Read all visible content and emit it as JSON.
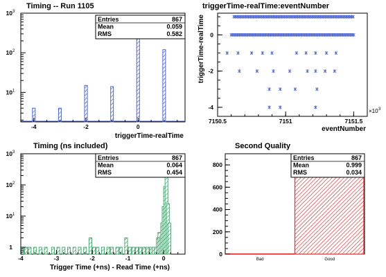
{
  "colors": {
    "blue": "#4d64d6",
    "green": "#3fa36a",
    "red": "#e03a3a",
    "axis": "#000000"
  },
  "chart_data": [
    {
      "id": "tl",
      "type": "bar",
      "title": "Timing -- Run 1105",
      "xlabel": "triggerTime-realTime",
      "ylabel": "",
      "yscale": "log",
      "xlim": [
        -4.5,
        1.8
      ],
      "ylim": [
        1.8,
        1000
      ],
      "x_ticks": [
        "-4",
        "-2",
        "0"
      ],
      "y_ticks": [
        "10",
        "10",
        "10"
      ],
      "y_tick_exps": [
        "1",
        "2",
        "3"
      ],
      "bars": [
        {
          "x": -4,
          "value": 4
        },
        {
          "x": -3,
          "value": 4
        },
        {
          "x": -2,
          "value": 15
        },
        {
          "x": -1,
          "value": 14
        },
        {
          "x": 0,
          "value": 700
        },
        {
          "x": 1,
          "value": 120
        }
      ],
      "stats": {
        "labels": [
          "Entries",
          "Mean",
          "RMS"
        ],
        "values": [
          "867",
          "0.059",
          "0.582"
        ]
      }
    },
    {
      "id": "tr",
      "type": "scatter",
      "title": "triggerTime-realTime:eventNumber",
      "xlabel": "eventNumber",
      "ylabel": "triggerTime-realTime",
      "x_exponent": "3",
      "xlim": [
        7150.5,
        7151.6
      ],
      "ylim": [
        -4.5,
        1.2
      ],
      "x_ticks": [
        "7150.5",
        "7151",
        "7151.5"
      ],
      "y_ticks": [
        "-4",
        "-2",
        "0"
      ],
      "rows": [
        {
          "y": 1,
          "dense": true,
          "x_start": 7150.62,
          "x_end": 7151.5
        },
        {
          "y": 0,
          "dense": true,
          "x_start": 7150.6,
          "x_end": 7151.5
        },
        {
          "y": -1,
          "dense": false,
          "x": [
            7150.57,
            7150.65,
            7150.75,
            7150.83,
            7150.9,
            7151.08,
            7151.15,
            7151.22,
            7151.3,
            7151.37
          ]
        },
        {
          "y": -2,
          "dense": false,
          "x": [
            7150.66,
            7150.79,
            7150.91,
            7151.03,
            7151.16,
            7151.22,
            7151.29,
            7151.36
          ]
        },
        {
          "y": -3,
          "dense": false,
          "x": [
            7150.88,
            7150.96,
            7151.07,
            7151.23
          ]
        },
        {
          "y": -4,
          "dense": false,
          "x": [
            7150.88,
            7150.96,
            7151.22
          ]
        }
      ]
    },
    {
      "id": "bl",
      "type": "bar",
      "title": "Timing (ns included)",
      "xlabel": "Trigger Time (+ns) - Read Time (+ns)",
      "ylabel": "",
      "yscale": "log",
      "xlim": [
        -4,
        0.6
      ],
      "ylim": [
        0.6,
        1000
      ],
      "x_ticks": [
        "-4",
        "-3",
        "-2",
        "-1",
        "0"
      ],
      "y_ticks": [
        "1",
        "10",
        "10",
        "10"
      ],
      "y_tick_exps": [
        "",
        "1",
        "2",
        "3"
      ],
      "step_bins": [
        [
          -3.95,
          1
        ],
        [
          -3.85,
          1
        ],
        [
          -3.75,
          1
        ],
        [
          -3.6,
          1
        ],
        [
          -3.45,
          1
        ],
        [
          -3.3,
          1
        ],
        [
          -3.1,
          1
        ],
        [
          -2.95,
          1
        ],
        [
          -2.8,
          1
        ],
        [
          -2.65,
          1
        ],
        [
          -2.5,
          1
        ],
        [
          -2.35,
          1
        ],
        [
          -2.2,
          1
        ],
        [
          -2.05,
          2
        ],
        [
          -1.95,
          1
        ],
        [
          -1.85,
          1
        ],
        [
          -1.7,
          1
        ],
        [
          -1.55,
          1
        ],
        [
          -1.45,
          1
        ],
        [
          -1.3,
          1
        ],
        [
          -1.2,
          1
        ],
        [
          -1.05,
          2
        ],
        [
          -0.95,
          1
        ],
        [
          -0.85,
          1
        ],
        [
          -0.75,
          1
        ],
        [
          -0.65,
          1
        ],
        [
          -0.55,
          1
        ],
        [
          -0.45,
          1
        ],
        [
          -0.35,
          1
        ],
        [
          -0.28,
          1
        ],
        [
          -0.22,
          1
        ],
        [
          -0.16,
          2
        ],
        [
          -0.12,
          3
        ],
        [
          -0.08,
          2
        ],
        [
          -0.04,
          6
        ],
        [
          0.0,
          20
        ],
        [
          0.04,
          90
        ],
        [
          0.08,
          550
        ],
        [
          0.12,
          25
        ],
        [
          0.16,
          6
        ]
      ],
      "stats": {
        "labels": [
          "Entries",
          "Mean",
          "RMS"
        ],
        "values": [
          "867",
          "0.064",
          "0.454"
        ]
      }
    },
    {
      "id": "br",
      "type": "bar",
      "title": "Second Quality",
      "xlabel": "",
      "ylabel": "",
      "ylim": [
        0,
        900
      ],
      "categories": [
        "Bad",
        "Good"
      ],
      "values": [
        0,
        867
      ],
      "y_ticks": [
        "0",
        "200",
        "400",
        "600",
        "800"
      ],
      "y_tick_values": [
        0,
        200,
        400,
        600,
        800
      ],
      "stats": {
        "labels": [
          "Entries",
          "Mean",
          "RMS"
        ],
        "values": [
          "867",
          "0.999",
          "0.034"
        ]
      }
    }
  ]
}
